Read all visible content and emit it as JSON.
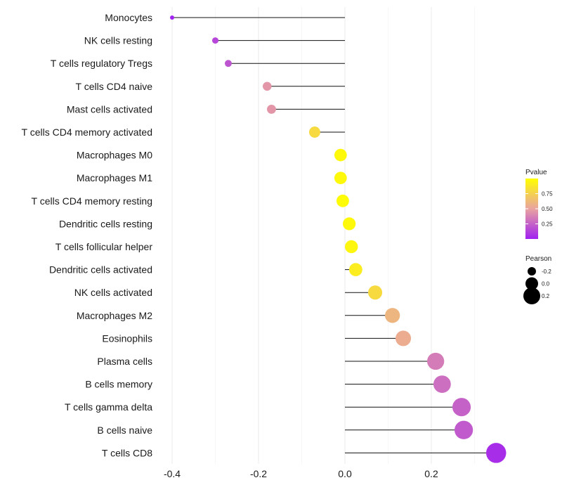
{
  "chart_data": {
    "type": "lollipop",
    "title": "",
    "xlabel": "",
    "ylabel": "",
    "xlim": [
      -0.4,
      0.35
    ],
    "xticks": [
      -0.4,
      -0.2,
      0.0,
      0.2
    ],
    "xtick_labels": [
      "-0.4",
      "-0.2",
      "0.0",
      "0.2"
    ],
    "grid": "vertical",
    "categories": [
      "Monocytes",
      "NK cells resting",
      "T cells regulatory  Tregs",
      "T cells CD4 naive",
      "Mast cells activated",
      "T cells CD4 memory activated",
      "Macrophages M0",
      "Macrophages M1",
      "T cells CD4 memory resting",
      "Dendritic cells resting",
      "T cells follicular helper",
      "Dendritic cells activated",
      "NK cells activated",
      "Macrophages M2",
      "Eosinophils",
      "Plasma cells",
      "B cells memory",
      "T cells gamma delta",
      "B cells naive",
      "T cells CD8"
    ],
    "pearson": [
      -0.4,
      -0.3,
      -0.27,
      -0.18,
      -0.17,
      -0.07,
      -0.01,
      -0.01,
      -0.005,
      0.01,
      0.015,
      0.025,
      0.07,
      0.11,
      0.135,
      0.21,
      0.225,
      0.27,
      0.275,
      0.35
    ],
    "pvalue": [
      0.01,
      0.15,
      0.2,
      0.45,
      0.45,
      0.8,
      0.97,
      0.97,
      0.98,
      0.97,
      0.95,
      0.9,
      0.8,
      0.6,
      0.55,
      0.35,
      0.3,
      0.25,
      0.22,
      0.05
    ],
    "legend": {
      "position": "right",
      "pvalue": {
        "title": "Pvalue",
        "ticks": [
          0.25,
          0.5,
          0.75
        ],
        "tick_labels": [
          "0.25",
          "0.50",
          "0.75"
        ],
        "range": [
          0.0,
          1.0
        ],
        "color_low": "#a020f0",
        "color_high": "#ffff00"
      },
      "pearson": {
        "title": "Pearson",
        "values": [
          -0.2,
          0.0,
          0.2
        ],
        "labels": [
          "-0.2",
          "0.0",
          "0.2"
        ]
      }
    }
  }
}
